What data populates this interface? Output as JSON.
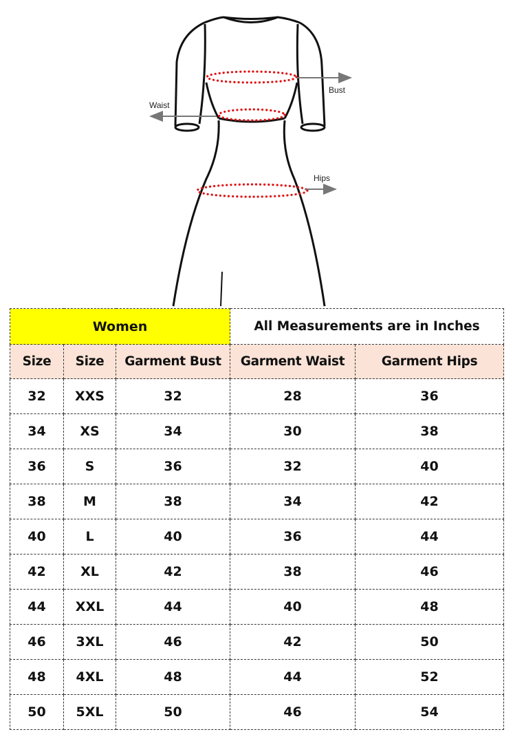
{
  "figure": {
    "labels": {
      "bust": "Bust",
      "waist": "Waist",
      "hips": "Hips"
    },
    "colors": {
      "outline": "#111111",
      "measure_dots": "#e01010",
      "arrow": "#777777"
    }
  },
  "table": {
    "group_label": "Women",
    "unit_note": "All Measurements are in Inches",
    "headers": [
      "Size",
      "Size",
      "Garment Bust",
      "Garment Waist",
      "Garment Hips"
    ],
    "rows": [
      [
        "32",
        "XXS",
        "32",
        "28",
        "36"
      ],
      [
        "34",
        "XS",
        "34",
        "30",
        "38"
      ],
      [
        "36",
        "S",
        "36",
        "32",
        "40"
      ],
      [
        "38",
        "M",
        "38",
        "34",
        "42"
      ],
      [
        "40",
        "L",
        "40",
        "36",
        "44"
      ],
      [
        "42",
        "XL",
        "42",
        "38",
        "46"
      ],
      [
        "44",
        "XXL",
        "44",
        "40",
        "48"
      ],
      [
        "46",
        "3XL",
        "46",
        "42",
        "50"
      ],
      [
        "48",
        "4XL",
        "48",
        "44",
        "52"
      ],
      [
        "50",
        "5XL",
        "50",
        "46",
        "54"
      ]
    ],
    "colors": {
      "group_bg": "#ffff00",
      "header_bg": "#fbe3d7"
    }
  }
}
